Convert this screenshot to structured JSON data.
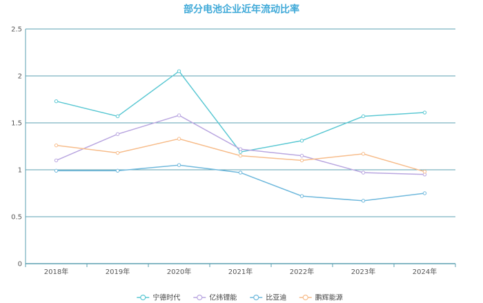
{
  "chart_data": {
    "type": "line",
    "title": "部分电池企业近年流动比率",
    "categories": [
      "2018年",
      "2019年",
      "2020年",
      "2021年",
      "2022年",
      "2023年",
      "2024年"
    ],
    "ylim": [
      0,
      2.5
    ],
    "yticks": [
      "0",
      "0.5",
      "1",
      "1.5",
      "2",
      "2.5"
    ],
    "grid": true,
    "legend_position": "bottom",
    "series": [
      {
        "name": "宁德时代",
        "color": "#5bc8d3",
        "values": [
          1.73,
          1.57,
          2.05,
          1.19,
          1.31,
          1.57,
          1.61
        ]
      },
      {
        "name": "亿纬锂能",
        "color": "#b9a6e0",
        "values": [
          1.1,
          1.38,
          1.58,
          1.22,
          1.15,
          0.97,
          0.95
        ]
      },
      {
        "name": "比亚迪",
        "color": "#6eb8dc",
        "values": [
          0.99,
          0.99,
          1.05,
          0.97,
          0.72,
          0.67,
          0.75
        ]
      },
      {
        "name": "鹏辉能源",
        "color": "#f7bc8a",
        "values": [
          1.26,
          1.18,
          1.33,
          1.15,
          1.1,
          1.17,
          0.98
        ]
      }
    ]
  }
}
